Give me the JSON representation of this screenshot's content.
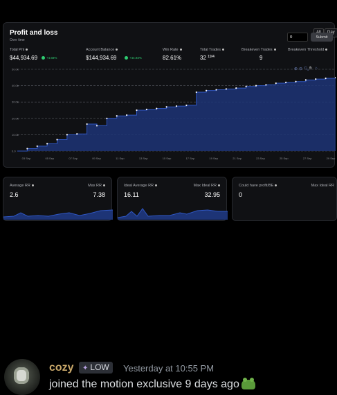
{
  "main": {
    "title": "Profit and loss",
    "subtitle": "Over time",
    "toggles": [
      "All",
      "Day"
    ],
    "stats": {
      "total_pnl": {
        "label": "Total Pnl",
        "value": "$44,934.69",
        "change": "+4.68%"
      },
      "account_balance": {
        "label": "Account Balance",
        "value": "$144,934.69",
        "change": "+44.93%"
      },
      "win_rate": {
        "label": "Win Rate",
        "value": "82.61%"
      },
      "total_trades": {
        "label": "Total Trades",
        "value": "32",
        "sup": "19/4"
      },
      "breakeven_trades": {
        "label": "Breakeven Trades",
        "value": "9"
      },
      "breakeven_threshold": {
        "label": "Breakeven Threshold",
        "input_value": "0",
        "submit_label": "Submit"
      }
    }
  },
  "chart_data": {
    "type": "area",
    "y_ticks": [
      "50.0k",
      "40.0k",
      "30.0k",
      "20.0k",
      "10.0k",
      "0.0"
    ],
    "x_ticks": [
      "03 Sep",
      "05 Sep",
      "07 Sep",
      "09 Sep",
      "11 Sep",
      "13 Sep",
      "15 Sep",
      "17 Sep",
      "19 Sep",
      "21 Sep",
      "23 Sep",
      "25 Sep",
      "27 Sep",
      "29 Sep"
    ],
    "ylim": [
      0,
      50000
    ],
    "grid": "horizontal dashed",
    "x": [
      0,
      1,
      2,
      3,
      4,
      5,
      6,
      7,
      8,
      9,
      10,
      11,
      12,
      13,
      14,
      15,
      16,
      17,
      18,
      19,
      20,
      21,
      22,
      23,
      24,
      25,
      26,
      27,
      28,
      29,
      30,
      31,
      32
    ],
    "values": [
      0,
      1500,
      3000,
      4500,
      7000,
      10000,
      10500,
      16500,
      15500,
      20000,
      21500,
      22000,
      25000,
      25500,
      26000,
      27000,
      27500,
      28000,
      36000,
      37000,
      37500,
      38000,
      38500,
      39500,
      40000,
      40500,
      41500,
      42000,
      42500,
      43500,
      44000,
      44500,
      44934.69
    ],
    "color": "#1e3a8a",
    "line_color": "#2a4fb0"
  },
  "small_cards": [
    {
      "left_label": "Average RR",
      "left_value": "2.6",
      "right_label": "Max RR",
      "right_value": "7.38"
    },
    {
      "left_label": "Ideal Average RR",
      "left_value": "16.11",
      "right_label": "Max Ideal RR",
      "right_value": "32.95"
    },
    {
      "left_label": "Could have profit/BE",
      "left_value": "0",
      "right_label": "Max Ideal RR",
      "right_value": ""
    }
  ],
  "message": {
    "username": "cozy",
    "role": "LOW",
    "timestamp": "Yesterday at 10:55 PM",
    "text": "joined the motion exclusive 9 days ago"
  }
}
